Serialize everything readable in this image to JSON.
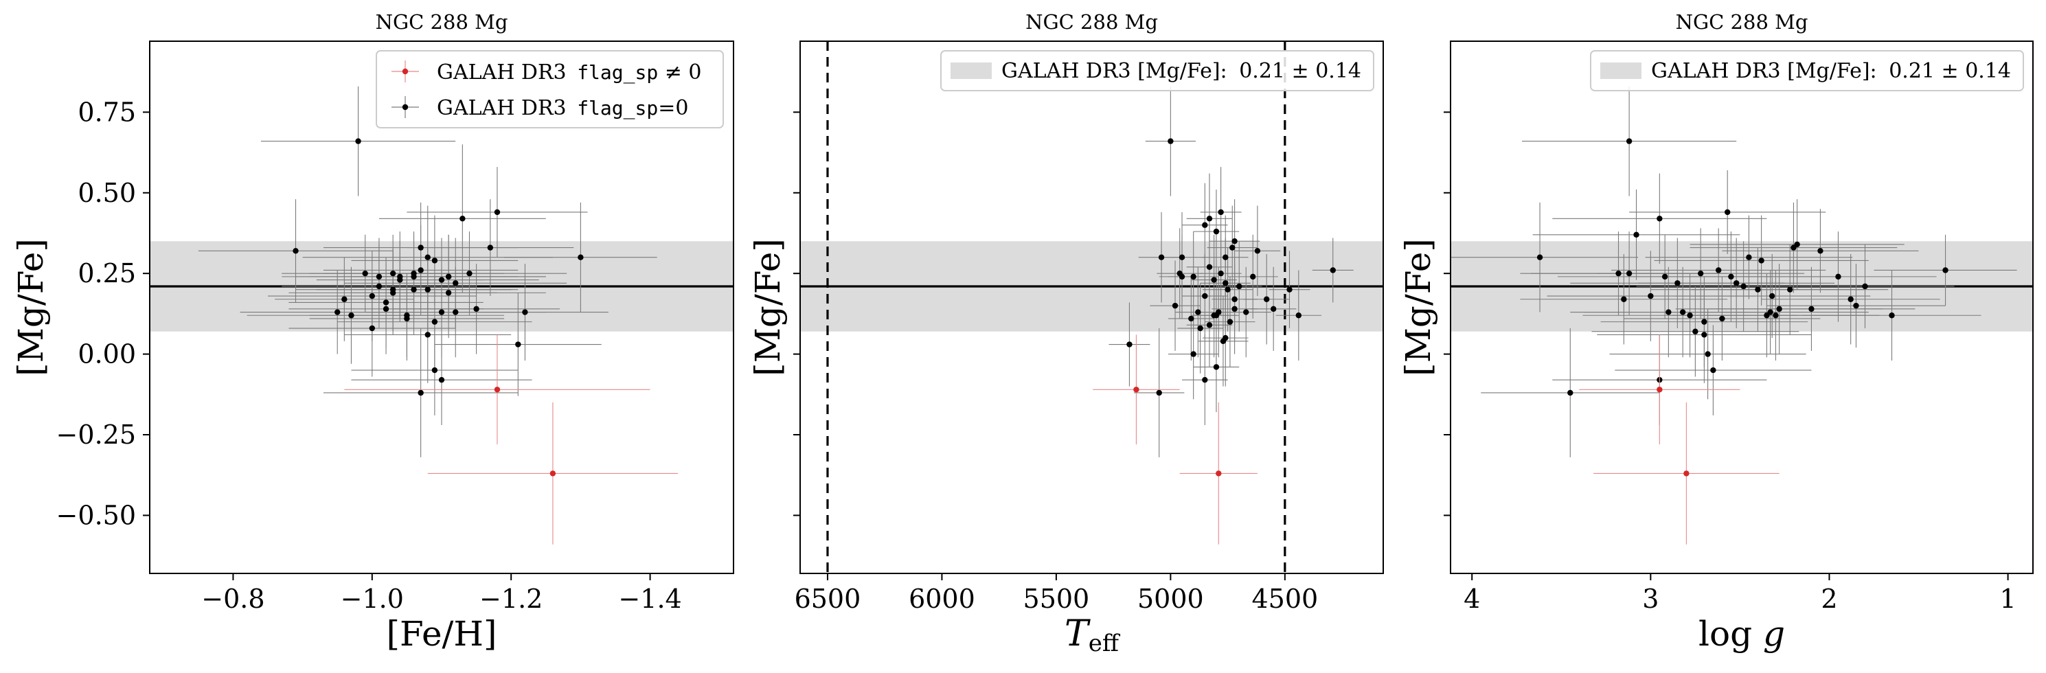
{
  "chart_data": [
    {
      "type": "scatter",
      "title": "NGC 288 Mg",
      "xlabel": "[Fe/H]",
      "ylabel": "[Mg/Fe]",
      "xlim": [
        -0.68,
        -1.52
      ],
      "ylim": [
        -0.68,
        0.97
      ],
      "xticks": [
        -0.8,
        -1.0,
        -1.2,
        -1.4
      ],
      "xtick_labels": [
        "−0.8",
        "−1.0",
        "−1.2",
        "−1.4"
      ],
      "yticks": [
        0.75,
        0.5,
        0.25,
        0.0,
        -0.25,
        -0.5
      ],
      "ytick_labels": [
        "0.75",
        "0.50",
        "0.25",
        "0.00",
        "−0.25",
        "−0.50"
      ],
      "show_ytick_labels": true,
      "grid": false,
      "legend_position": "top-right",
      "legend": [
        {
          "label_prefix": "GALAH DR3 ",
          "code": "flag_sp",
          "label_suffix": " ≠ 0",
          "color": "#d62728",
          "kind": "marker"
        },
        {
          "label_prefix": "GALAH DR3 ",
          "code": "flag_sp",
          "label_suffix": "=0",
          "color": "#000000",
          "kind": "marker"
        }
      ],
      "band": {
        "center": 0.21,
        "halfwidth": 0.14,
        "color": "#dcdcdc"
      },
      "hline": 0.21,
      "vlines": [],
      "series": [
        {
          "name": "GALAH DR3 flag_sp=0",
          "color": "#000000",
          "x": [
            -0.89,
            -0.98,
            -0.96,
            -1.04,
            -0.99,
            -0.97,
            -1.01,
            -1.03,
            -1.06,
            -1.08,
            -1.09,
            -1.1,
            -1.12,
            -1.11,
            -1.15,
            -1.17,
            -1.18,
            -1.3,
            -1.13,
            -1.02,
            -1.05,
            -1.07,
            -1.0,
            -1.03,
            -1.06,
            -1.09,
            -1.12,
            -1.14,
            -1.04,
            -1.02,
            -1.08,
            -1.1,
            -1.05,
            -1.01,
            -1.07,
            -1.11,
            -1.22,
            -1.21,
            -0.95,
            -1.03,
            -1.06,
            -1.09,
            -1.07,
            -1.1,
            -1.11,
            -1.08,
            -1.0
          ],
          "y": [
            0.32,
            0.66,
            0.17,
            0.24,
            0.25,
            0.12,
            0.21,
            0.25,
            0.24,
            0.3,
            0.29,
            0.23,
            0.22,
            0.24,
            0.14,
            0.33,
            0.44,
            0.3,
            0.42,
            0.16,
            0.12,
            0.33,
            0.08,
            0.2,
            0.25,
            0.1,
            0.13,
            0.25,
            0.23,
            0.14,
            0.2,
            0.13,
            0.11,
            0.24,
            0.26,
            0.24,
            0.13,
            0.03,
            0.13,
            0.19,
            0.2,
            -0.05,
            -0.12,
            -0.08,
            0.19,
            0.06,
            0.18
          ],
          "xerr": [
            0.14,
            0.14,
            0.1,
            0.17,
            0.12,
            0.15,
            0.14,
            0.12,
            0.15,
            0.18,
            0.12,
            0.14,
            0.16,
            0.14,
            0.12,
            0.12,
            0.13,
            0.11,
            0.12,
            0.14,
            0.14,
            0.14,
            0.12,
            0.14,
            0.13,
            0.14,
            0.13,
            0.14,
            0.12,
            0.14,
            0.13,
            0.12,
            0.14,
            0.12,
            0.14,
            0.14,
            0.12,
            0.12,
            0.14,
            0.15,
            0.14,
            0.12,
            0.14,
            0.13,
            0.14,
            0.12,
            0.15
          ],
          "yerr": [
            0.16,
            0.17,
            0.13,
            0.14,
            0.12,
            0.15,
            0.13,
            0.12,
            0.13,
            0.16,
            0.14,
            0.13,
            0.14,
            0.13,
            0.14,
            0.15,
            0.14,
            0.17,
            0.23,
            0.14,
            0.13,
            0.14,
            0.15,
            0.13,
            0.13,
            0.14,
            0.14,
            0.13,
            0.12,
            0.14,
            0.13,
            0.14,
            0.13,
            0.12,
            0.14,
            0.13,
            0.15,
            0.16,
            0.13,
            0.13,
            0.14,
            0.14,
            0.2,
            0.14,
            0.14,
            0.15,
            0.14
          ]
        },
        {
          "name": "GALAH DR3 flag_sp ≠ 0",
          "color": "#d62728",
          "x": [
            -1.18,
            -1.26
          ],
          "y": [
            -0.11,
            -0.37
          ],
          "xerr": [
            0.22,
            0.18
          ],
          "yerr": [
            0.17,
            0.22
          ]
        }
      ]
    },
    {
      "type": "scatter",
      "title": "NGC 288 Mg",
      "xlabel": "T_eff",
      "ylabel": "[Mg/Fe]",
      "xlim": [
        6620,
        4070
      ],
      "ylim": [
        -0.68,
        0.97
      ],
      "xticks": [
        6500,
        6000,
        5500,
        5000,
        4500
      ],
      "xtick_labels": [
        "6500",
        "6000",
        "5500",
        "5000",
        "4500"
      ],
      "yticks": [
        0.75,
        0.5,
        0.25,
        0.0,
        -0.25,
        -0.5
      ],
      "ytick_labels": [
        "",
        "",
        "",
        "",
        "",
        ""
      ],
      "show_ytick_labels": false,
      "grid": false,
      "legend_position": "top-right",
      "legend": [
        {
          "label_prefix": "GALAH DR3 [Mg/Fe]: ",
          "code": "",
          "label_suffix": "0.21 ± 0.14",
          "color": "#dcdcdc",
          "kind": "patch"
        }
      ],
      "band": {
        "center": 0.21,
        "halfwidth": 0.14,
        "color": "#dcdcdc"
      },
      "hline": 0.21,
      "vlines": [
        6500,
        4500
      ],
      "series": [
        {
          "name": "GALAH DR3 flag_sp=0",
          "color": "#000000",
          "x": [
            5000,
            4780,
            4950,
            4830,
            4720,
            4960,
            4800,
            4900,
            4830,
            4780,
            4760,
            4700,
            4640,
            4620,
            4980,
            5040,
            4850,
            4750,
            4720,
            4880,
            4810,
            4790,
            4670,
            4910,
            4870,
            4760,
            4740,
            4580,
            4550,
            4480,
            4440,
            4290,
            4760,
            4720,
            4800,
            4850,
            4900,
            4830,
            4800,
            4770,
            4810,
            4950,
            5180,
            5050,
            4730,
            4850
          ],
          "y": [
            0.66,
            0.44,
            0.3,
            0.42,
            0.35,
            0.25,
            0.38,
            0.24,
            0.27,
            0.25,
            0.22,
            0.21,
            0.24,
            0.32,
            0.15,
            0.3,
            0.18,
            0.2,
            0.14,
            0.13,
            0.12,
            0.13,
            0.13,
            0.11,
            0.08,
            0.05,
            0.1,
            0.17,
            0.14,
            0.2,
            0.12,
            0.26,
            0.3,
            0.17,
            0.12,
            -0.08,
            0.0,
            0.09,
            -0.04,
            0.04,
            0.23,
            0.24,
            0.03,
            -0.12,
            0.33,
            0.4
          ],
          "xerr": [
            110,
            90,
            100,
            100,
            110,
            100,
            100,
            110,
            100,
            90,
            110,
            100,
            110,
            100,
            110,
            100,
            100,
            110,
            100,
            100,
            100,
            100,
            110,
            100,
            100,
            100,
            110,
            100,
            100,
            90,
            100,
            90,
            100,
            100,
            100,
            100,
            110,
            100,
            100,
            110,
            100,
            100,
            90,
            110,
            110,
            100
          ],
          "yerr": [
            0.17,
            0.14,
            0.14,
            0.14,
            0.13,
            0.14,
            0.13,
            0.14,
            0.13,
            0.13,
            0.14,
            0.14,
            0.13,
            0.14,
            0.14,
            0.14,
            0.13,
            0.13,
            0.14,
            0.14,
            0.13,
            0.14,
            0.14,
            0.13,
            0.14,
            0.15,
            0.14,
            0.14,
            0.13,
            0.12,
            0.14,
            0.1,
            0.13,
            0.13,
            0.14,
            0.14,
            0.14,
            0.13,
            0.14,
            0.14,
            0.14,
            0.13,
            0.13,
            0.2,
            0.13,
            0.13
          ]
        },
        {
          "name": "GALAH DR3 flag_sp ≠ 0",
          "color": "#d62728",
          "x": [
            5150,
            4790
          ],
          "y": [
            -0.11,
            -0.37
          ],
          "xerr": [
            190,
            170
          ],
          "yerr": [
            0.17,
            0.22
          ]
        }
      ]
    },
    {
      "type": "scatter",
      "title": "NGC 288 Mg",
      "xlabel": "log g",
      "ylabel": "[Mg/Fe]",
      "xlim": [
        4.12,
        0.86
      ],
      "ylim": [
        -0.68,
        0.97
      ],
      "xticks": [
        4,
        3,
        2,
        1
      ],
      "xtick_labels": [
        "4",
        "3",
        "2",
        "1"
      ],
      "yticks": [
        0.75,
        0.5,
        0.25,
        0.0,
        -0.25,
        -0.5
      ],
      "ytick_labels": [
        "",
        "",
        "",
        "",
        "",
        ""
      ],
      "show_ytick_labels": false,
      "grid": false,
      "legend_position": "top-right",
      "legend": [
        {
          "label_prefix": "GALAH DR3 [Mg/Fe]: ",
          "code": "",
          "label_suffix": "0.21 ± 0.14",
          "color": "#dcdcdc",
          "kind": "patch"
        }
      ],
      "band": {
        "center": 0.21,
        "halfwidth": 0.14,
        "color": "#dcdcdc"
      },
      "hline": 0.21,
      "vlines": [],
      "series": [
        {
          "name": "GALAH DR3 flag_sp=0",
          "color": "#000000",
          "x": [
            3.62,
            3.12,
            3.08,
            2.95,
            2.57,
            2.18,
            2.05,
            2.2,
            1.95,
            1.8,
            1.65,
            1.35,
            2.38,
            2.45,
            2.52,
            2.62,
            2.72,
            2.85,
            2.92,
            3.0,
            3.18,
            3.15,
            2.9,
            2.78,
            2.7,
            2.6,
            2.3,
            2.4,
            2.22,
            2.1,
            1.88,
            2.82,
            2.7,
            2.68,
            2.75,
            2.95,
            3.45,
            3.12,
            2.55,
            2.33,
            2.48,
            2.35,
            2.28,
            2.32,
            1.85,
            2.65
          ],
          "y": [
            0.3,
            0.66,
            0.37,
            0.42,
            0.44,
            0.34,
            0.32,
            0.33,
            0.24,
            0.21,
            0.12,
            0.26,
            0.29,
            0.3,
            0.22,
            0.26,
            0.25,
            0.22,
            0.24,
            0.18,
            0.25,
            0.17,
            0.13,
            0.12,
            0.1,
            0.11,
            0.12,
            0.2,
            0.2,
            0.14,
            0.17,
            0.13,
            0.06,
            0.0,
            0.07,
            -0.08,
            -0.12,
            0.25,
            0.24,
            0.13,
            0.21,
            0.12,
            0.14,
            0.18,
            0.15,
            -0.05
          ],
          "xerr": [
            0.55,
            0.6,
            0.58,
            0.6,
            0.55,
            0.6,
            0.55,
            0.58,
            0.55,
            0.5,
            0.5,
            0.4,
            0.6,
            0.58,
            0.55,
            0.6,
            0.58,
            0.6,
            0.6,
            0.58,
            0.55,
            0.58,
            0.55,
            0.6,
            0.58,
            0.55,
            0.58,
            0.6,
            0.55,
            0.58,
            0.5,
            0.55,
            0.6,
            0.55,
            0.58,
            0.6,
            0.5,
            0.55,
            0.58,
            0.55,
            0.6,
            0.55,
            0.58,
            0.55,
            0.5,
            0.55
          ],
          "yerr": [
            0.17,
            0.17,
            0.14,
            0.14,
            0.13,
            0.14,
            0.13,
            0.14,
            0.14,
            0.13,
            0.14,
            0.11,
            0.14,
            0.13,
            0.14,
            0.13,
            0.14,
            0.14,
            0.13,
            0.14,
            0.13,
            0.14,
            0.14,
            0.13,
            0.14,
            0.13,
            0.14,
            0.13,
            0.14,
            0.13,
            0.14,
            0.14,
            0.15,
            0.14,
            0.14,
            0.14,
            0.2,
            0.13,
            0.14,
            0.13,
            0.14,
            0.13,
            0.14,
            0.13,
            0.13,
            0.14
          ]
        },
        {
          "name": "GALAH DR3 flag_sp ≠ 0",
          "color": "#d62728",
          "x": [
            2.95,
            2.8
          ],
          "y": [
            -0.11,
            -0.37
          ],
          "xerr": [
            0.45,
            0.52
          ],
          "yerr": [
            0.17,
            0.22
          ]
        }
      ]
    }
  ]
}
